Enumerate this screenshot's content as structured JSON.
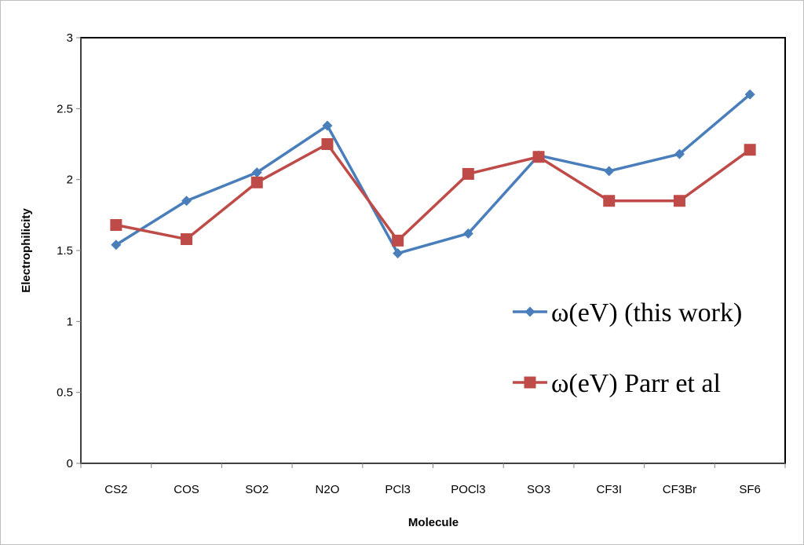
{
  "chart_data": {
    "type": "line",
    "title": "",
    "xlabel": "Molecule",
    "ylabel": "Electrophilicity",
    "categories": [
      "CS2",
      "COS",
      "SO2",
      "N2O",
      "PCl3",
      "POCl3",
      "SO3",
      "CF3I",
      "CF3Br",
      "SF6"
    ],
    "ylim": [
      0,
      3
    ],
    "yticks": [
      0,
      0.5,
      1,
      1.5,
      2,
      2.5,
      3
    ],
    "ytick_labels": [
      "0",
      "0.5",
      "1",
      "1.5",
      "2",
      "2.5",
      "3"
    ],
    "grid": false,
    "legend_position": "right",
    "series": [
      {
        "name": "ω(eV) (this work)",
        "color": "#4a7ebb",
        "marker": "diamond",
        "values": [
          1.54,
          1.85,
          2.05,
          2.38,
          1.48,
          1.62,
          2.17,
          2.06,
          2.18,
          2.6
        ]
      },
      {
        "name": "ω(eV) Parr et al",
        "color": "#be4b48",
        "marker": "square",
        "values": [
          1.68,
          1.58,
          1.98,
          2.25,
          1.57,
          2.04,
          2.16,
          1.85,
          1.85,
          2.21
        ]
      }
    ]
  }
}
